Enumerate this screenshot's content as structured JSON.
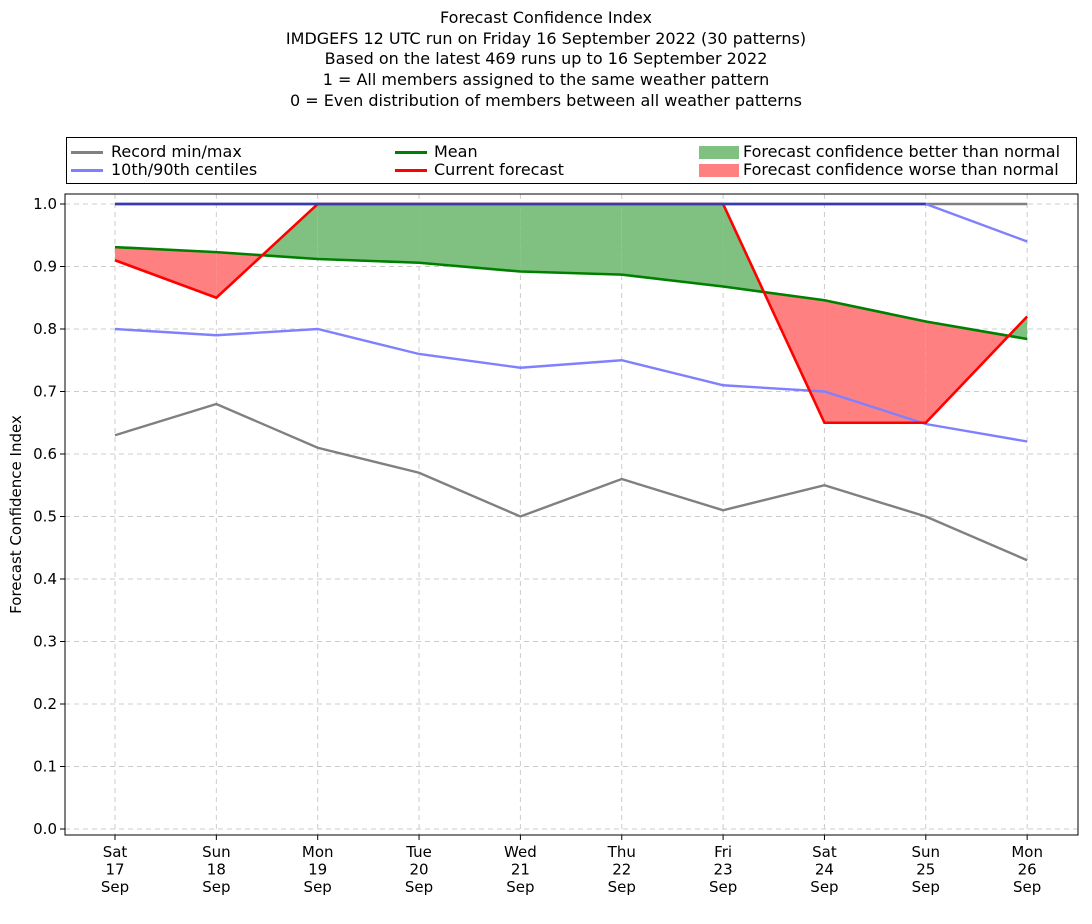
{
  "title_lines": [
    "Forecast Confidence Index",
    "IMDGEFS 12 UTC run on Friday 16 September 2022 (30 patterns)",
    "Based on the latest 469 runs up to 16 September 2022",
    "1 = All members assigned to the same weather pattern",
    "0 = Even distribution of members between all weather patterns"
  ],
  "legend": [
    {
      "label": "Record min/max",
      "kind": "line",
      "color": "#808080"
    },
    {
      "label": "10th/90th centiles",
      "kind": "line",
      "color": "#8080ff"
    },
    {
      "label": "Mean",
      "kind": "line",
      "color": "#008000"
    },
    {
      "label": "Current forecast",
      "kind": "line",
      "color": "#ff0000"
    },
    {
      "label": "Forecast confidence better than normal",
      "kind": "patch",
      "color": "#80c080"
    },
    {
      "label": "Forecast confidence worse than normal",
      "kind": "patch",
      "color": "#ff8080"
    }
  ],
  "chart_data": {
    "type": "line",
    "ylabel": "Forecast Confidence Index",
    "xlabel": "",
    "ylim": [
      0,
      1.0
    ],
    "yticks": [
      "0.0",
      "0.1",
      "0.2",
      "0.3",
      "0.4",
      "0.5",
      "0.6",
      "0.7",
      "0.8",
      "0.9",
      "1.0"
    ],
    "grid": true,
    "legend_position": "top",
    "categories": [
      [
        "Sat",
        "17",
        "Sep"
      ],
      [
        "Sun",
        "18",
        "Sep"
      ],
      [
        "Mon",
        "19",
        "Sep"
      ],
      [
        "Tue",
        "20",
        "Sep"
      ],
      [
        "Wed",
        "21",
        "Sep"
      ],
      [
        "Thu",
        "22",
        "Sep"
      ],
      [
        "Fri",
        "23",
        "Sep"
      ],
      [
        "Sat",
        "24",
        "Sep"
      ],
      [
        "Sun",
        "25",
        "Sep"
      ],
      [
        "Mon",
        "26",
        "Sep"
      ]
    ],
    "series": [
      {
        "name": "Record max",
        "color": "#808080",
        "values": [
          1,
          1,
          1,
          1,
          1,
          1,
          1,
          1,
          1,
          1
        ]
      },
      {
        "name": "Record min",
        "color": "#808080",
        "values": [
          0.63,
          0.68,
          0.61,
          0.57,
          0.5,
          0.56,
          0.51,
          0.55,
          0.5,
          0.43
        ]
      },
      {
        "name": "90th centile",
        "color": "#8080ff",
        "values": [
          1,
          1,
          1,
          1,
          1,
          1,
          1,
          1,
          1,
          0.94
        ]
      },
      {
        "name": "10th centile",
        "color": "#8080ff",
        "values": [
          0.8,
          0.79,
          0.8,
          0.76,
          0.738,
          0.75,
          0.71,
          0.7,
          0.648,
          0.62
        ]
      },
      {
        "name": "Mean",
        "color": "#008000",
        "values": [
          0.931,
          0.923,
          0.912,
          0.906,
          0.892,
          0.887,
          0.868,
          0.846,
          0.812,
          0.784
        ]
      },
      {
        "name": "Current forecast",
        "color": "#ff0000",
        "values": [
          0.91,
          0.85,
          1.0,
          1.0,
          1.0,
          1.0,
          1.0,
          0.65,
          0.65,
          0.82
        ]
      }
    ],
    "fill_better_color": "#80c080",
    "fill_worse_color": "#ff8080"
  }
}
